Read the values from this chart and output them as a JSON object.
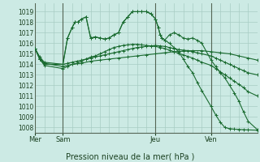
{
  "background_color": "#cceae4",
  "grid_color": "#a8ccc4",
  "line_color": "#1a6b30",
  "title": "Pression niveau de la mer( hPa )",
  "ylim": [
    1007.5,
    1019.8
  ],
  "yticks": [
    1008,
    1009,
    1010,
    1011,
    1012,
    1013,
    1014,
    1015,
    1016,
    1017,
    1018,
    1019
  ],
  "xlim": [
    0,
    24
  ],
  "day_positions": [
    0,
    3,
    13,
    19
  ],
  "day_labels": [
    "Mer",
    "Sam",
    "Jeu",
    "Ven"
  ],
  "series": [
    {
      "x": [
        0,
        0.5,
        1.0,
        3,
        3.5,
        4,
        4.5,
        5,
        5.5,
        6,
        6.5,
        7,
        7.5,
        8,
        8.5,
        9,
        9.5,
        10,
        10.5,
        11,
        11.5,
        12,
        12.5,
        13,
        13.5,
        14,
        14.5,
        15,
        15.5,
        16,
        16.5,
        17,
        17.5,
        18,
        19,
        19.5,
        20,
        20.5,
        21,
        21.5,
        22,
        22.5,
        23,
        24
      ],
      "y": [
        1015.5,
        1014.7,
        1014.2,
        1014.0,
        1014.1,
        1014.2,
        1014.3,
        1014.4,
        1014.5,
        1014.6,
        1014.7,
        1014.8,
        1014.9,
        1015.0,
        1015.1,
        1015.2,
        1015.3,
        1015.4,
        1015.5,
        1015.6,
        1015.65,
        1015.7,
        1015.75,
        1015.8,
        1015.75,
        1015.7,
        1015.6,
        1015.5,
        1015.4,
        1015.35,
        1015.3,
        1015.2,
        1015.1,
        1015.0,
        1014.8,
        1014.6,
        1014.4,
        1014.2,
        1014.0,
        1013.8,
        1013.6,
        1013.4,
        1013.2,
        1013.0
      ]
    },
    {
      "x": [
        0,
        0.5,
        1.0,
        3,
        3.5,
        4,
        4.5,
        5,
        5.5,
        6,
        6.5,
        7,
        7.5,
        8,
        8.5,
        9,
        9.5,
        10,
        10.5,
        11,
        11.5,
        12,
        12.5,
        13,
        13.5,
        14,
        14.5,
        15,
        15.5,
        16,
        16.5,
        17,
        17.5,
        18,
        19,
        19.5,
        20,
        20.5,
        21,
        21.5,
        22,
        22.5,
        23,
        24
      ],
      "y": [
        1015.5,
        1014.5,
        1013.9,
        1013.6,
        1013.8,
        1014.0,
        1014.1,
        1014.3,
        1014.5,
        1014.7,
        1014.8,
        1015.0,
        1015.2,
        1015.4,
        1015.6,
        1015.7,
        1015.8,
        1015.85,
        1015.9,
        1015.9,
        1015.85,
        1015.8,
        1015.75,
        1015.7,
        1015.6,
        1015.5,
        1015.35,
        1015.2,
        1015.05,
        1014.9,
        1014.75,
        1014.6,
        1014.4,
        1014.2,
        1013.9,
        1013.6,
        1013.3,
        1013.0,
        1012.7,
        1012.4,
        1012.1,
        1011.8,
        1011.4,
        1011.0
      ]
    },
    {
      "x": [
        0,
        0.5,
        1.0,
        3,
        4,
        5,
        6,
        7,
        8,
        9,
        10,
        11,
        12,
        13,
        14,
        15,
        16,
        17,
        18,
        19,
        20,
        21,
        22,
        23,
        24
      ],
      "y": [
        1015.5,
        1014.6,
        1014.1,
        1013.8,
        1014.0,
        1014.1,
        1014.3,
        1014.4,
        1014.5,
        1014.6,
        1014.7,
        1014.8,
        1014.9,
        1015.0,
        1015.1,
        1015.2,
        1015.25,
        1015.3,
        1015.3,
        1015.2,
        1015.1,
        1015.0,
        1014.8,
        1014.6,
        1014.4
      ]
    },
    {
      "x": [
        0,
        0.5,
        1.0,
        3,
        3.5,
        4,
        4.3,
        4.6,
        5,
        5.5,
        6,
        6.5,
        7,
        7.5,
        8,
        8.5,
        9,
        9.5,
        10,
        10.5,
        11,
        11.5,
        12,
        12.5,
        13,
        13.3,
        13.5,
        13.7,
        14,
        14.5,
        15,
        15.5,
        16,
        16.5,
        17,
        17.5,
        18,
        19,
        19.5,
        20,
        20.5,
        21,
        21.5,
        22,
        22.5,
        23,
        24
      ],
      "y": [
        1015.5,
        1014.5,
        1014.0,
        1014.0,
        1016.5,
        1017.5,
        1018.0,
        1018.0,
        1018.3,
        1018.5,
        1016.5,
        1016.6,
        1016.5,
        1016.4,
        1016.5,
        1016.8,
        1017.0,
        1018.0,
        1018.5,
        1019.0,
        1019.0,
        1019.0,
        1019.0,
        1018.8,
        1018.3,
        1017.5,
        1016.8,
        1016.5,
        1016.3,
        1016.8,
        1017.0,
        1016.8,
        1016.5,
        1016.4,
        1016.5,
        1016.3,
        1016.0,
        1014.4,
        1013.8,
        1013.2,
        1012.7,
        1012.0,
        1011.3,
        1010.5,
        1009.5,
        1008.6,
        1007.8
      ]
    },
    {
      "x": [
        0,
        0.5,
        1.0,
        3,
        3.5,
        4,
        4.3,
        4.6,
        5,
        5.5,
        6,
        6.5,
        7,
        7.5,
        8,
        8.5,
        9,
        9.5,
        10,
        10.5,
        11,
        11.5,
        12,
        12.5,
        13,
        13.3,
        13.5,
        13.7,
        14,
        14.5,
        15,
        15.5,
        16,
        16.5,
        17,
        17.5,
        18,
        19,
        19.5,
        20,
        20.5,
        21,
        21.5,
        22,
        22.5,
        23,
        24
      ],
      "y": [
        1015.5,
        1014.5,
        1014.0,
        1014.0,
        1016.5,
        1017.5,
        1018.0,
        1018.0,
        1018.3,
        1018.5,
        1016.5,
        1016.6,
        1016.5,
        1016.4,
        1016.5,
        1016.8,
        1017.0,
        1018.0,
        1018.5,
        1019.0,
        1019.0,
        1019.0,
        1019.0,
        1018.8,
        1018.3,
        1017.5,
        1016.8,
        1016.5,
        1016.3,
        1016.0,
        1015.6,
        1015.2,
        1014.5,
        1013.8,
        1013.2,
        1012.3,
        1011.5,
        1010.0,
        1009.2,
        1008.5,
        1008.0,
        1007.9,
        1007.85,
        1007.82,
        1007.8,
        1007.78,
        1007.75
      ]
    }
  ]
}
